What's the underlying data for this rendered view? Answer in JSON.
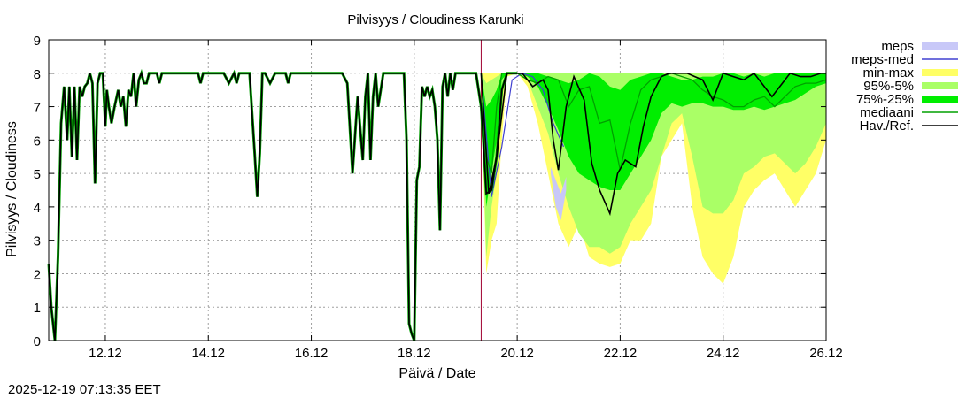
{
  "chart_data": {
    "type": "area",
    "title": "Pilvisyys / Cloudiness Karunki",
    "xlabel": "Päivä / Date",
    "ylabel": "Pilvisyys / Cloudiness",
    "timestamp": "2025-12-19 07:13:35 EET",
    "xlim": [
      10.9,
      26.0
    ],
    "ylim": [
      0,
      9
    ],
    "grid": true,
    "legend_position": "outside-right",
    "x_ticks": [
      {
        "value": 12,
        "label": "12.12"
      },
      {
        "value": 14,
        "label": "14.12"
      },
      {
        "value": 16,
        "label": "16.12"
      },
      {
        "value": 18,
        "label": "18.12"
      },
      {
        "value": 20,
        "label": "20.12"
      },
      {
        "value": 22,
        "label": "22.12"
      },
      {
        "value": 24,
        "label": "24.12"
      },
      {
        "value": 26,
        "label": "26.12"
      }
    ],
    "y_ticks": [
      0,
      1,
      2,
      3,
      4,
      5,
      6,
      7,
      8,
      9
    ],
    "forecast_start": 19.3,
    "colors": {
      "meps": "#c8c8f8",
      "meps_med": "#4040d0",
      "minmax": "#ffff66",
      "p95_5": "#aaff66",
      "p75_25": "#00ee00",
      "mediaani": "#00a000",
      "havref": "#000000",
      "forecast_line": "#a00030",
      "grid": "#a0a0a0"
    },
    "legend": [
      {
        "key": "meps",
        "label": "meps",
        "style": "box"
      },
      {
        "key": "meps_med",
        "label": "meps-med",
        "style": "line"
      },
      {
        "key": "minmax",
        "label": "min-max",
        "style": "box"
      },
      {
        "key": "p95_5",
        "label": "95%-5%",
        "style": "box"
      },
      {
        "key": "p75_25",
        "label": "75%-25%",
        "style": "box"
      },
      {
        "key": "mediaani",
        "label": "mediaani",
        "style": "line"
      },
      {
        "key": "havref",
        "label": "Hav./Ref.",
        "style": "line"
      }
    ],
    "series": {
      "havref": {
        "name": "Hav./Ref.",
        "x": [
          10.9,
          10.95,
          11.02,
          11.08,
          11.14,
          11.2,
          11.26,
          11.3,
          11.35,
          11.4,
          11.45,
          11.5,
          11.55,
          11.6,
          11.65,
          11.7,
          11.75,
          11.8,
          11.85,
          11.9,
          11.95,
          12.0,
          12.03,
          12.07,
          12.12,
          12.18,
          12.25,
          12.3,
          12.35,
          12.4,
          12.45,
          12.5,
          12.55,
          12.6,
          12.65,
          12.7,
          12.75,
          12.8,
          12.85,
          12.9,
          12.95,
          13.0,
          13.05,
          13.1,
          13.15,
          13.2,
          13.3,
          13.4,
          13.5,
          13.6,
          13.7,
          13.8,
          13.85,
          13.9,
          14.0,
          14.3,
          14.4,
          14.5,
          14.55,
          14.6,
          14.7,
          14.8,
          14.9,
          14.95,
          15.0,
          15.05,
          15.1,
          15.2,
          15.3,
          15.4,
          15.5,
          15.55,
          15.6,
          15.7,
          16.0,
          16.3,
          16.4,
          16.5,
          16.6,
          16.7,
          16.8,
          16.9,
          17.0,
          17.05,
          17.1,
          17.15,
          17.2,
          17.25,
          17.3,
          17.4,
          17.5,
          17.6,
          17.7,
          17.8,
          17.85,
          17.9,
          17.95,
          18.0,
          18.05,
          18.1,
          18.15,
          18.2,
          18.25,
          18.3,
          18.35,
          18.4,
          18.45,
          18.5,
          18.55,
          18.6,
          18.65,
          18.7,
          18.75,
          18.8,
          18.85,
          18.9,
          19.0,
          19.1,
          19.2,
          19.3,
          19.35,
          19.4,
          19.5,
          19.6,
          19.7,
          19.8,
          19.9,
          20.0
        ],
        "y": [
          2.3,
          1.0,
          0.0,
          2.5,
          6.5,
          7.6,
          6.0,
          7.6,
          5.5,
          7.6,
          5.4,
          7.6,
          7.3,
          7.6,
          7.7,
          8.0,
          7.7,
          4.7,
          7.7,
          8.0,
          8.0,
          6.4,
          7.5,
          7.0,
          6.5,
          7.0,
          7.5,
          7.0,
          7.3,
          6.4,
          7.5,
          7.3,
          8.0,
          7.0,
          7.8,
          8.0,
          7.7,
          7.7,
          8.0,
          8.0,
          8.0,
          8.0,
          7.7,
          8.0,
          8.0,
          8.0,
          8.0,
          8.0,
          8.0,
          8.0,
          8.0,
          8.0,
          7.7,
          8.0,
          8.0,
          8.0,
          7.7,
          8.0,
          7.7,
          8.0,
          8.0,
          8.0,
          5.6,
          4.3,
          5.6,
          8.0,
          8.0,
          7.7,
          8.0,
          8.0,
          8.0,
          7.7,
          8.0,
          8.0,
          8.0,
          8.0,
          8.0,
          8.0,
          8.0,
          7.7,
          5.0,
          7.3,
          5.4,
          7.3,
          8.0,
          5.4,
          7.3,
          8.0,
          7.0,
          8.0,
          8.0,
          8.0,
          8.0,
          8.0,
          6.0,
          0.5,
          0.2,
          0.0,
          4.8,
          5.2,
          7.6,
          7.3,
          7.6,
          7.3,
          7.5,
          7.0,
          6.0,
          3.3,
          7.6,
          8.0,
          7.3,
          8.0,
          7.5,
          8.0,
          8.0,
          8.0,
          8.0,
          8.0,
          8.0,
          7.0,
          5.8,
          4.4,
          4.5,
          5.5,
          7.5,
          8.0,
          8.0,
          8.0
        ]
      },
      "forecast_x": [
        19.3,
        19.4,
        19.5,
        19.6,
        19.7,
        19.8,
        20.0,
        20.2,
        20.4,
        20.6,
        20.8,
        21.0,
        21.2,
        21.4,
        21.6,
        21.8,
        22.0,
        22.2,
        22.4,
        22.6,
        22.8,
        23.0,
        23.2,
        23.4,
        23.6,
        23.8,
        24.0,
        24.2,
        24.4,
        24.6,
        24.8,
        25.0,
        25.2,
        25.4,
        25.6,
        25.8,
        26.0
      ],
      "min": [
        7.5,
        2.0,
        3.0,
        3.5,
        6.0,
        7.9,
        8.0,
        7.6,
        6.5,
        5.0,
        3.5,
        2.8,
        3.5,
        2.5,
        2.3,
        2.2,
        2.3,
        3.0,
        3.0,
        3.5,
        5.5,
        6.0,
        6.5,
        4.0,
        2.5,
        2.0,
        1.7,
        2.5,
        4.0,
        4.5,
        4.8,
        5.0,
        4.5,
        4.0,
        4.5,
        5.0,
        6.0
      ],
      "p5": [
        7.8,
        2.5,
        4.0,
        5.0,
        7.5,
        8.0,
        8.0,
        7.8,
        7.0,
        6.2,
        5.0,
        4.0,
        3.2,
        2.8,
        2.8,
        2.6,
        2.8,
        3.5,
        4.0,
        4.5,
        5.5,
        6.5,
        6.8,
        5.5,
        4.0,
        3.8,
        3.8,
        4.2,
        5.0,
        5.2,
        5.5,
        5.6,
        5.3,
        5.0,
        5.3,
        5.8,
        6.5
      ],
      "p25": [
        7.9,
        4.0,
        5.0,
        6.0,
        7.8,
        8.0,
        8.0,
        7.9,
        7.6,
        7.0,
        6.3,
        5.5,
        5.0,
        4.8,
        4.6,
        4.5,
        4.5,
        5.0,
        5.5,
        6.0,
        6.8,
        7.1,
        7.0,
        7.1,
        7.1,
        7.0,
        7.0,
        6.9,
        6.9,
        7.0,
        6.9,
        7.0,
        7.1,
        7.2,
        7.4,
        7.6,
        7.7
      ],
      "p75": [
        8.0,
        7.0,
        7.2,
        7.5,
        8.0,
        8.0,
        8.0,
        8.0,
        8.0,
        7.9,
        7.8,
        7.7,
        7.8,
        8.0,
        7.9,
        7.6,
        7.5,
        7.8,
        7.9,
        8.0,
        8.0,
        7.9,
        7.8,
        7.8,
        7.9,
        7.9,
        8.0,
        8.0,
        7.9,
        8.0,
        7.9,
        8.0,
        8.0,
        8.0,
        8.0,
        8.0,
        8.0
      ],
      "p95": [
        8.0,
        7.7,
        7.8,
        7.9,
        8.0,
        8.0,
        8.0,
        8.0,
        8.0,
        8.0,
        8.0,
        8.0,
        8.0,
        8.0,
        8.0,
        8.0,
        8.0,
        8.0,
        8.0,
        8.0,
        8.0,
        8.0,
        8.0,
        8.0,
        8.0,
        8.0,
        8.0,
        8.0,
        8.0,
        8.0,
        8.0,
        8.0,
        8.0,
        8.0,
        8.0,
        8.0,
        8.0
      ],
      "max": [
        8.0,
        8.0,
        8.0,
        8.0,
        8.0,
        8.0,
        8.0,
        8.0,
        8.0,
        8.0,
        8.0,
        8.0,
        8.0,
        8.0,
        8.0,
        8.0,
        8.0,
        8.0,
        8.0,
        8.0,
        8.0,
        8.0,
        8.0,
        8.0,
        8.0,
        8.0,
        8.0,
        8.0,
        8.0,
        8.0,
        8.0,
        8.0,
        8.0,
        8.0,
        8.0,
        8.0,
        8.0
      ],
      "mediaani": [
        8.0,
        5.5,
        5.0,
        7.0,
        8.0,
        8.0,
        8.0,
        7.8,
        7.7,
        7.9,
        7.8,
        7.0,
        7.5,
        7.6,
        6.5,
        6.6,
        5.1,
        6.5,
        7.5,
        7.8,
        7.9,
        8.0,
        7.9,
        7.8,
        7.5,
        7.3,
        7.2,
        7.0,
        7.0,
        7.2,
        7.3,
        7.0,
        7.3,
        7.6,
        7.7,
        7.7,
        7.8
      ],
      "meps_band": {
        "x": [
          20.65,
          20.75,
          20.85,
          20.95
        ],
        "low": [
          5.0,
          4.0,
          3.6,
          4.5
        ],
        "high": [
          5.2,
          4.8,
          4.4,
          4.9
        ]
      },
      "meps_med": {
        "x": [
          19.3,
          19.5,
          19.7,
          19.9,
          20.1,
          20.3,
          20.5,
          20.7,
          20.9
        ],
        "y": [
          8.0,
          4.3,
          5.8,
          7.8,
          8.0,
          7.9,
          7.5,
          6.5,
          5.8
        ]
      },
      "havref_forecast": {
        "x": [
          19.3,
          19.45,
          19.6,
          19.8,
          19.95,
          20.1,
          20.3,
          20.5,
          20.6,
          20.7,
          20.8,
          20.95,
          21.1,
          21.3,
          21.45,
          21.6,
          21.8,
          21.95,
          22.1,
          22.3,
          22.45,
          22.6,
          22.8,
          22.95,
          23.1,
          23.3,
          23.45,
          23.6,
          23.8,
          24.0,
          24.2,
          24.4,
          24.6,
          24.8,
          24.95,
          25.1,
          25.3,
          25.5,
          25.7,
          25.9,
          26.0
        ],
        "y": [
          8.0,
          4.4,
          5.5,
          8.0,
          8.0,
          8.0,
          7.6,
          7.8,
          7.5,
          6.0,
          5.1,
          7.0,
          7.9,
          7.2,
          5.3,
          4.5,
          3.8,
          5.0,
          5.4,
          5.2,
          6.4,
          7.3,
          7.9,
          8.0,
          8.0,
          8.0,
          7.9,
          7.8,
          7.2,
          8.0,
          7.9,
          7.8,
          8.0,
          7.6,
          7.3,
          7.6,
          8.0,
          7.9,
          7.9,
          8.0,
          8.0
        ]
      }
    }
  }
}
